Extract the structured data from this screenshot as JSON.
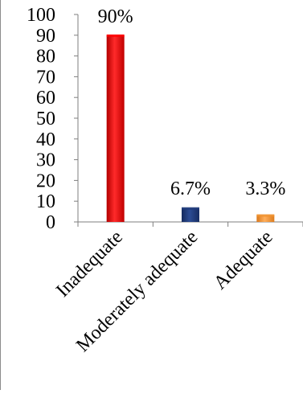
{
  "chart_data": {
    "type": "bar",
    "title": "",
    "xlabel": "",
    "ylabel": "",
    "categories": [
      "Inadequate",
      "Moderately adequate",
      "Adequate"
    ],
    "values": [
      90,
      6.7,
      3.3
    ],
    "data_labels": [
      "90%",
      "6.7%",
      "3.3%"
    ],
    "colors": [
      "#ff0000",
      "#1f3a7a",
      "#f0922e"
    ],
    "ylim": [
      0,
      100
    ],
    "yticks": [
      0,
      10,
      20,
      30,
      40,
      50,
      60,
      70,
      80,
      90,
      100
    ],
    "grid": false,
    "legend": "none"
  }
}
